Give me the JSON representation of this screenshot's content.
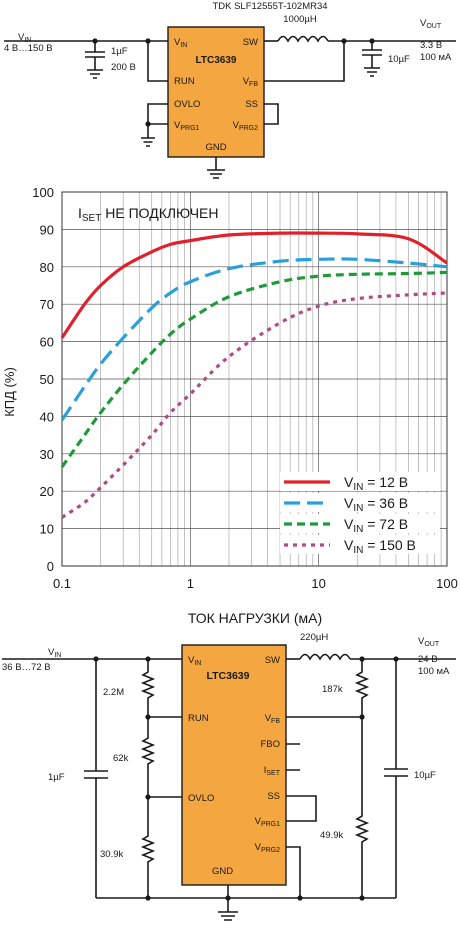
{
  "top_circuit": {
    "inductor_part": "TDK SLF12555T-102MR34",
    "inductor_value": "1000µH",
    "vin_label": "V",
    "vin_sub": "IN",
    "vin_range": "4 В…150 В",
    "cin_value": "1µF",
    "cin_voltage": "200 В",
    "chip_name": "LTC3639",
    "pins_left": [
      "V",
      "RUN",
      "OVLO",
      "V"
    ],
    "pin_vin_sub": "IN",
    "pin_vprg1_sub": "PRG1",
    "pin_sw": "SW",
    "pin_vfb": "V",
    "pin_vfb_sub": "FB",
    "pin_ss": "SS",
    "pin_vprg2": "V",
    "pin_vprg2_sub": "PRG2",
    "pin_gnd": "GND",
    "vout_label": "V",
    "vout_sub": "OUT",
    "vout_value": "3.3 В",
    "vout_current": "100 мА",
    "cout_value": "10µF"
  },
  "chart_data": {
    "type": "line",
    "title_main": "I",
    "title_sub": "SET",
    "title_rest": " НЕ ПОДКЛЮЧЕН",
    "xlabel": "ТОК НАГРУЗКИ (мА)",
    "ylabel": "КПД (%)",
    "x_scale": "log",
    "xlim": [
      0.1,
      100
    ],
    "ylim": [
      0,
      100
    ],
    "x_ticks": [
      "0.1",
      "1",
      "10",
      "100"
    ],
    "y_ticks": [
      "0",
      "10",
      "20",
      "30",
      "40",
      "50",
      "60",
      "70",
      "80",
      "90",
      "100"
    ],
    "grid": true,
    "legend_position": "bottom-right",
    "series": [
      {
        "name": "V",
        "name_sub": "IN",
        "name_rest": " = 12 В",
        "color": "#e0202a",
        "dash": "solid",
        "x": [
          0.1,
          0.15,
          0.2,
          0.3,
          0.5,
          0.7,
          1,
          2,
          5,
          10,
          20,
          50,
          100
        ],
        "y": [
          61,
          70,
          75,
          80,
          84,
          86,
          87,
          88.5,
          89,
          89,
          88.8,
          87.5,
          81
        ]
      },
      {
        "name": "V",
        "name_sub": "IN",
        "name_rest": " = 36 В",
        "color": "#2aa0d8",
        "dash": "long",
        "x": [
          0.1,
          0.15,
          0.2,
          0.3,
          0.5,
          0.7,
          1,
          2,
          5,
          10,
          20,
          50,
          100
        ],
        "y": [
          39,
          48,
          54,
          61,
          69,
          73,
          76,
          79.5,
          81.5,
          82,
          82,
          81,
          80
        ]
      },
      {
        "name": "V",
        "name_sub": "IN",
        "name_rest": " = 72 В",
        "color": "#1f9a3a",
        "dash": "medium",
        "x": [
          0.1,
          0.15,
          0.2,
          0.3,
          0.5,
          0.7,
          1,
          2,
          5,
          10,
          20,
          50,
          100
        ],
        "y": [
          26.5,
          35,
          41,
          48.5,
          57,
          62,
          66,
          72,
          76,
          77.5,
          78,
          78.2,
          78.5
        ]
      },
      {
        "name": "V",
        "name_sub": "IN",
        "name_rest": " = 150 В",
        "color": "#b04a8a",
        "dash": "short",
        "x": [
          0.1,
          0.15,
          0.2,
          0.3,
          0.5,
          0.7,
          1,
          2,
          5,
          10,
          20,
          50,
          100
        ],
        "y": [
          13,
          17,
          21,
          27,
          35,
          41,
          46,
          56,
          65,
          69.5,
          71.5,
          72.5,
          73
        ]
      }
    ]
  },
  "bottom_circuit": {
    "vin_label": "V",
    "vin_sub": "IN",
    "vin_range": "36 В…72 В",
    "inductor_value": "220µH",
    "chip_name": "LTC3639",
    "pin_vin": "V",
    "pin_vin_sub": "IN",
    "pin_run": "RUN",
    "pin_ovlo": "OVLO",
    "pin_gnd": "GND",
    "pin_sw": "SW",
    "pin_vfb": "V",
    "pin_vfb_sub": "FB",
    "pin_fbo": "FBO",
    "pin_iset": "I",
    "pin_iset_sub": "SET",
    "pin_ss": "SS",
    "pin_vprg1": "V",
    "pin_vprg1_sub": "PRG1",
    "pin_vprg2": "V",
    "pin_vprg2_sub": "PRG2",
    "r1": "2.2M",
    "r2": "62k",
    "r3": "30.9k",
    "cin_value": "1µF",
    "r_top": "187k",
    "r_bottom": "49.9k",
    "vout_label": "V",
    "vout_sub": "OUT",
    "vout_value": "24 В",
    "vout_current": "100 мА",
    "cout_value": "10µF"
  }
}
